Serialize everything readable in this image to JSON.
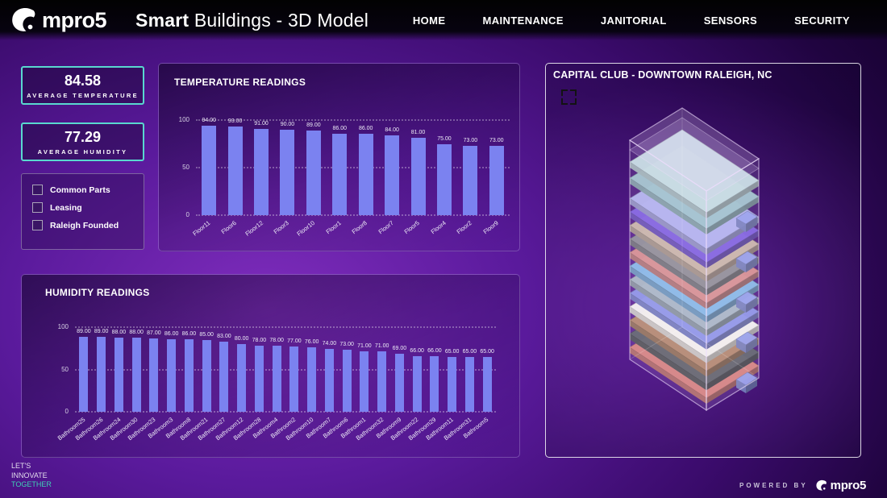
{
  "header": {
    "logo_text": "mpro5",
    "title_bold": "Smart",
    "title_rest": " Buildings - 3D Model",
    "nav": [
      "HOME",
      "MAINTENANCE",
      "JANITORIAL",
      "SENSORS",
      "SECURITY"
    ]
  },
  "kpis": [
    {
      "value": "84.58",
      "label": "AVERAGE TEMPERATURE"
    },
    {
      "value": "77.29",
      "label": "AVERAGE HUMIDITY"
    }
  ],
  "filters": [
    {
      "label": "Common Parts",
      "checked": false
    },
    {
      "label": "Leasing",
      "checked": false
    },
    {
      "label": "Raleigh Founded",
      "checked": false
    }
  ],
  "chart_data": [
    {
      "type": "bar",
      "title": "TEMPERATURE READINGS",
      "categories": [
        "Floor11",
        "Floor6",
        "Floor12",
        "Floor3",
        "Floor10",
        "Floor1",
        "Floor8",
        "Floor7",
        "Floor5",
        "Floor4",
        "Floor2",
        "Floor9"
      ],
      "values": [
        94,
        93,
        91,
        90,
        89,
        86,
        86,
        84,
        81,
        75,
        73,
        73
      ],
      "xlabel": "",
      "ylabel": "",
      "ylim": [
        0,
        100
      ],
      "yticks": [
        0,
        50,
        100
      ],
      "grid": "dotted-horizontal",
      "legend": "none",
      "bar_color": "#7b82f0",
      "value_label_format": "0.00"
    },
    {
      "type": "bar",
      "title": "HUMIDITY READINGS",
      "categories": [
        "Bathroom25",
        "Bathroom26",
        "Bathroom24",
        "Bathroom30",
        "Bathroom23",
        "Bathroom3",
        "Bathroom8",
        "Bathroom21",
        "Bathroom27",
        "Bathroom12",
        "Bathroom28",
        "Bathroom4",
        "Bathroom2",
        "Bathroom10",
        "Bathroom7",
        "Bathroom6",
        "Bathroom1",
        "Bathroom32",
        "Bathroom9",
        "Bathroom22",
        "Bathroom29",
        "Bathroom11",
        "Bathroom31",
        "Bathroom5"
      ],
      "values": [
        89,
        89,
        88,
        88,
        87,
        86,
        86,
        85,
        83,
        80,
        78,
        78,
        77,
        76,
        74,
        73,
        71,
        71,
        69,
        66,
        66,
        65,
        65,
        65
      ],
      "xlabel": "",
      "ylabel": "",
      "ylim": [
        0,
        100
      ],
      "yticks": [
        0,
        50,
        100
      ],
      "grid": "dotted-horizontal",
      "legend": "none",
      "bar_color": "#7b82f0",
      "value_label_format": "0.00"
    }
  ],
  "model_panel": {
    "title": "CAPITAL CLUB - DOWNTOWN RALEIGH, NC",
    "building_floor_colors_bottom_to_top": [
      "#d9837d",
      "#5c6068",
      "#b5886c",
      "#f7f5f2",
      "#8b93e8",
      "#a9b7c3",
      "#85b9e8",
      "#d98e8e",
      "#8d8d96",
      "#cbb6a8",
      "#7d5de0",
      "#b3b4ef",
      "#9fc3cc",
      "#c6dde2"
    ],
    "glass_color": "#e9d6fa"
  },
  "footer": {
    "tagline_lines": [
      "LET'S",
      "INNOVATE",
      "TOGETHER"
    ],
    "powered_by": "POWERED BY",
    "powered_logo_text": "mpro5"
  },
  "colors": {
    "kpi_border": "#59d8cf",
    "bar": "#7b82f0",
    "tagline_highlight": "#3fd1b6",
    "background_purple": "#5a1a9c"
  }
}
